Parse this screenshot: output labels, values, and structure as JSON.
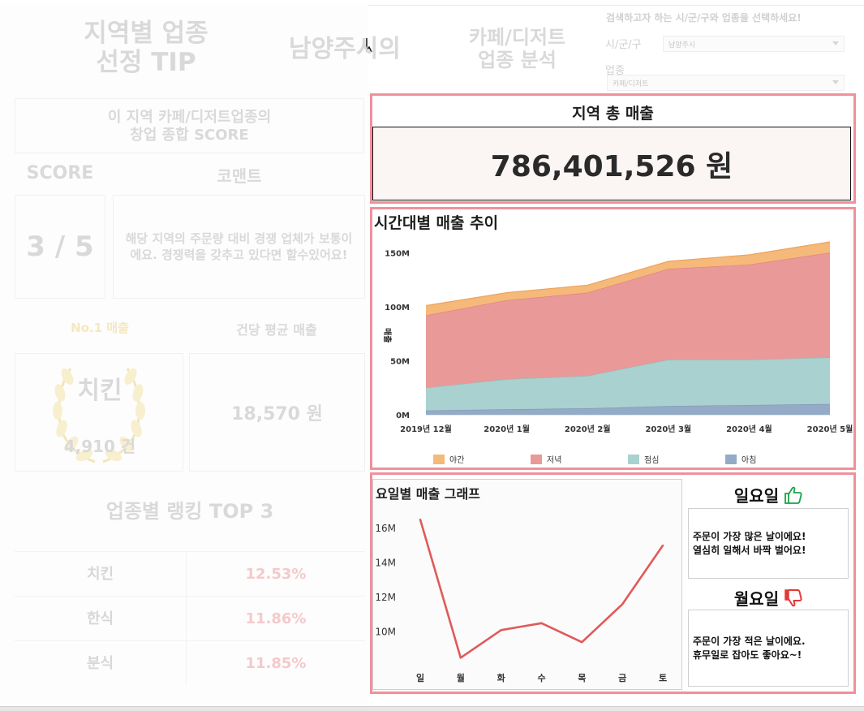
{
  "header": {
    "tip_title_line1": "지역별 업종",
    "tip_title_line2": "선정 TIP",
    "region_title": "남양주시의",
    "industry_title_line1": "카페/디저트",
    "industry_title_line2": "업종 분석"
  },
  "filters": {
    "instruction": "검색하고자 하는 시/군/구와 업종을 선택하세요!",
    "region_label": "시/군/구",
    "region_value": "남양주시",
    "industry_label": "업종",
    "industry_value": "카페/디저트"
  },
  "score_section": {
    "heading_line1": "이 지역 카페/디저트업종의",
    "heading_line2": "창업 종합 SCORE",
    "score_label": "SCORE",
    "comment_label": "코맨트",
    "score_value": "3 / 5",
    "comment_text": "해당 지역의 주문량 대비 경쟁 업체가 보통이에요. 경쟁력을 갖추고 있다면 할수있어요!"
  },
  "sales_section": {
    "no1_label": "No.1 매출",
    "avg_label": "건당 평균 매출",
    "no1_name": "치킨",
    "no1_count": "4,910 건",
    "avg_value": "18,570 원"
  },
  "ranking": {
    "title": "업종별 랭킹 TOP 3",
    "rows": [
      {
        "name": "치킨",
        "pct": "12.53%"
      },
      {
        "name": "한식",
        "pct": "11.86%"
      },
      {
        "name": "분식",
        "pct": "11.85%"
      }
    ]
  },
  "total_sales": {
    "title": "지역 총 매출",
    "value": "786,401,526 원"
  },
  "colors": {
    "night": "#f5b97a",
    "dinner": "#ea9999",
    "lunch": "#a9d1cf",
    "morning": "#93abc7",
    "line": "#e05a5a",
    "panel_border": "#f0919a"
  },
  "chart_data": [
    {
      "type": "area",
      "title": "시간대별 매출 추이",
      "ylabel": "매출",
      "categories": [
        "2019년 12월",
        "2020년 1월",
        "2020년 2월",
        "2020년 3월",
        "2020년 4월",
        "2020년 5월"
      ],
      "stacked": true,
      "ylim": [
        0,
        160
      ],
      "yticks": [
        "0M",
        "50M",
        "100M",
        "150M"
      ],
      "yticks_values": [
        0,
        50,
        100,
        150
      ],
      "series": [
        {
          "name": "아침",
          "values": [
            4,
            5,
            6,
            8,
            9,
            10
          ]
        },
        {
          "name": "점심",
          "values": [
            21,
            28,
            30,
            43,
            42,
            43
          ]
        },
        {
          "name": "저녁",
          "values": [
            67,
            73,
            77,
            84,
            88,
            97
          ]
        },
        {
          "name": "야간",
          "values": [
            9,
            7,
            7,
            7,
            9,
            10
          ]
        }
      ],
      "legend": [
        "야간",
        "저녁",
        "점심",
        "아침"
      ],
      "legend_position": "bottom"
    },
    {
      "type": "line",
      "title": "요일별 매출 그래프",
      "categories": [
        "일",
        "월",
        "화",
        "수",
        "목",
        "금",
        "토"
      ],
      "values": [
        16.5,
        8.5,
        10.1,
        10.5,
        9.4,
        11.6,
        15.0
      ],
      "ylim": [
        8.0,
        17.4
      ],
      "yticks": [
        "10M",
        "12M",
        "14M",
        "16M"
      ],
      "yticks_values": [
        10,
        12,
        14,
        16
      ]
    }
  ],
  "best_day": {
    "day": "일요일",
    "text_line1": "주문이 가장 많은 날이에요!",
    "text_line2": "열심히 일해서 바짝 벌어요!",
    "icon": "thumbs-up-icon"
  },
  "worst_day": {
    "day": "월요일",
    "text_line1": "주문이 가장 적은 날이에요.",
    "text_line2": "휴무일로 잡아도 좋아요~!",
    "icon": "thumbs-down-icon"
  }
}
